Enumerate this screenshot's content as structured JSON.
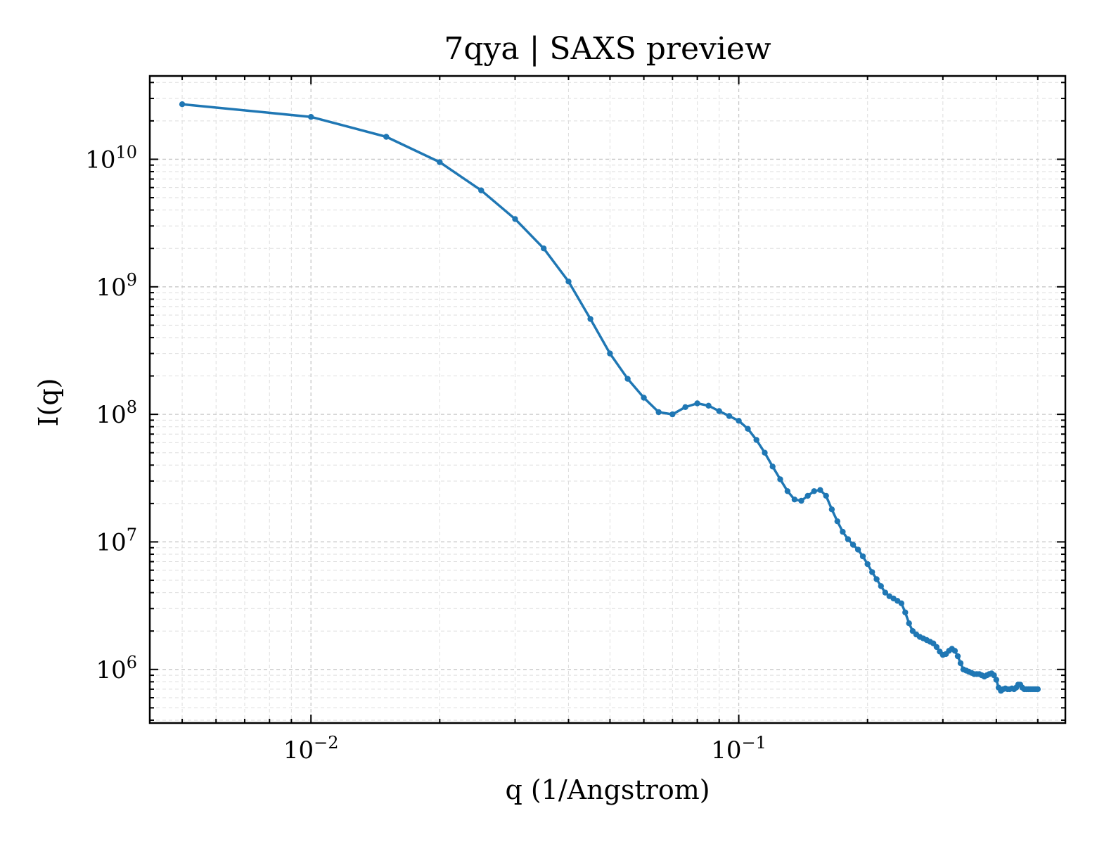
{
  "chart_data": {
    "type": "line",
    "title": "7qya | SAXS preview",
    "xlabel": "q (1/Angstrom)",
    "ylabel": "I(q)",
    "x_scale": "log",
    "y_scale": "log",
    "xlim": [
      0.0042,
      0.58
    ],
    "ylim": [
      380000,
      45000000000
    ],
    "grid": true,
    "legend": "none",
    "x_ticks": [
      {
        "value": 0.01,
        "base": "10",
        "exp": "−2"
      },
      {
        "value": 0.1,
        "base": "10",
        "exp": "−1"
      }
    ],
    "y_ticks": [
      {
        "value": 1000000,
        "base": "10",
        "exp": "6"
      },
      {
        "value": 10000000,
        "base": "10",
        "exp": "7"
      },
      {
        "value": 100000000,
        "base": "10",
        "exp": "8"
      },
      {
        "value": 1000000000,
        "base": "10",
        "exp": "9"
      },
      {
        "value": 10000000000,
        "base": "10",
        "exp": "10"
      }
    ],
    "series": [
      {
        "color": "#1f77b4",
        "x": [
          0.005,
          0.01,
          0.015,
          0.02,
          0.025,
          0.03,
          0.035,
          0.04,
          0.045,
          0.05,
          0.055,
          0.06,
          0.065,
          0.07,
          0.075,
          0.08,
          0.085,
          0.09,
          0.095,
          0.1,
          0.105,
          0.11,
          0.115,
          0.12,
          0.125,
          0.13,
          0.135,
          0.14,
          0.145,
          0.15,
          0.155,
          0.16,
          0.165,
          0.17,
          0.175,
          0.18,
          0.185,
          0.19,
          0.195,
          0.2,
          0.205,
          0.21,
          0.215,
          0.22,
          0.225,
          0.23,
          0.235,
          0.24,
          0.245,
          0.25,
          0.255,
          0.26,
          0.265,
          0.27,
          0.275,
          0.28,
          0.285,
          0.29,
          0.295,
          0.3,
          0.305,
          0.31,
          0.315,
          0.32,
          0.325,
          0.33,
          0.335,
          0.34,
          0.345,
          0.35,
          0.355,
          0.36,
          0.365,
          0.37,
          0.375,
          0.38,
          0.385,
          0.39,
          0.395,
          0.4,
          0.405,
          0.41,
          0.415,
          0.42,
          0.425,
          0.43,
          0.435,
          0.44,
          0.445,
          0.45,
          0.455,
          0.46,
          0.465,
          0.47,
          0.475,
          0.48,
          0.485,
          0.49,
          0.495,
          0.5
        ],
        "y": [
          27000000000,
          21500000000,
          15000000000,
          9500000000,
          5700000000,
          3400000000,
          2000000000,
          1100000000,
          560000000,
          300000000,
          190000000,
          135000000,
          104000000,
          100000000,
          114000000,
          122000000,
          117000000,
          106000000,
          97000000,
          89000000,
          77000000,
          63000000,
          50000000,
          39000000,
          31000000,
          25000000,
          21500000,
          21000000,
          23000000,
          25000000,
          25500000,
          23000000,
          18000000,
          14500000,
          12000000,
          10500000,
          9500000,
          8700000,
          7700000,
          6700000,
          5800000,
          5100000,
          4500000,
          4000000,
          3750000,
          3600000,
          3450000,
          3300000,
          2800000,
          2300000,
          2000000,
          1880000,
          1800000,
          1750000,
          1700000,
          1650000,
          1600000,
          1500000,
          1380000,
          1300000,
          1320000,
          1400000,
          1450000,
          1400000,
          1270000,
          1120000,
          1000000,
          980000,
          960000,
          940000,
          920000,
          920000,
          920000,
          900000,
          880000,
          900000,
          920000,
          930000,
          900000,
          830000,
          720000,
          680000,
          700000,
          710000,
          700000,
          700000,
          710000,
          700000,
          720000,
          760000,
          760000,
          720000,
          700000,
          700000,
          700000,
          700000,
          700000,
          700000,
          700000,
          700000
        ]
      }
    ]
  }
}
